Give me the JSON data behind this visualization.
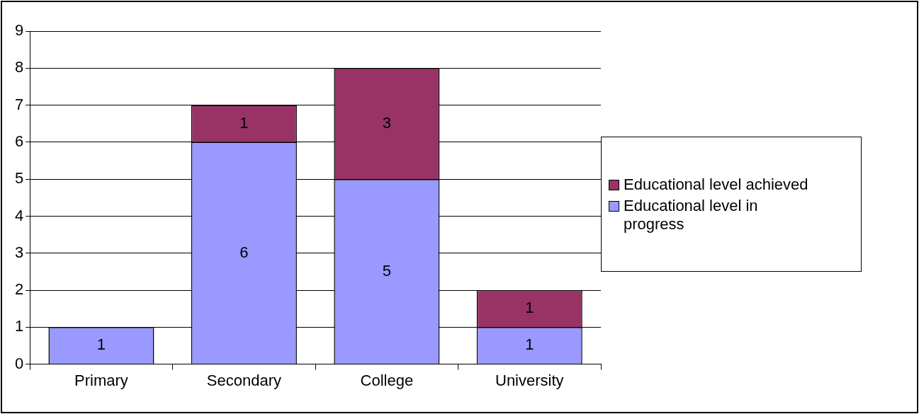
{
  "chart_data": {
    "type": "bar",
    "stacked": true,
    "categories": [
      "Primary",
      "Secondary",
      "College",
      "University"
    ],
    "series": [
      {
        "name": "Educational level in progress",
        "color": "#9999ff",
        "values": [
          1,
          6,
          5,
          1
        ]
      },
      {
        "name": "Educational level achieved",
        "color": "#993366",
        "values": [
          null,
          1,
          3,
          1
        ]
      }
    ],
    "ylim": [
      0,
      9
    ],
    "yticks": [
      0,
      1,
      2,
      3,
      4,
      5,
      6,
      7,
      8,
      9
    ],
    "grid": "y",
    "legend": "right",
    "data_labels": true
  }
}
